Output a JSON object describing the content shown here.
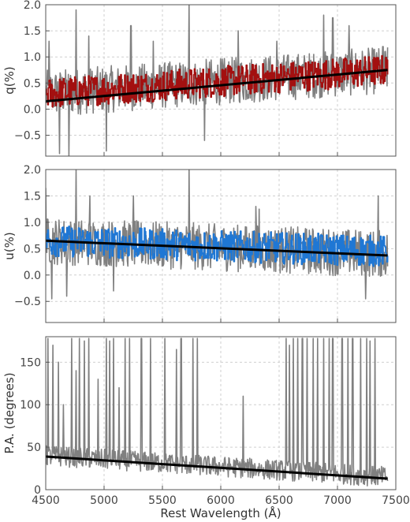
{
  "chart_data": [
    {
      "type": "line",
      "ylabel": "q(%)",
      "xlim": [
        4500,
        7500
      ],
      "ylim": [
        -0.9,
        2.0
      ],
      "yticks": [
        -0.5,
        0.0,
        0.5,
        1.0,
        1.5,
        2.0
      ],
      "ytick_labels": [
        "−0.5",
        "0.0",
        "0.5",
        "1.0",
        "1.5",
        "2.0"
      ],
      "grid": true,
      "series": [
        {
          "role": "raw",
          "color": "#808080",
          "x_range": [
            4500,
            7430
          ],
          "mean_start": 0.3,
          "mean_end": 0.75,
          "amplitude": 0.45,
          "spikes": [
            [
              4530,
              1.3
            ],
            [
              4760,
              1.9
            ],
            [
              4870,
              1.4
            ],
            [
              5230,
              1.6
            ],
            [
              5420,
              1.3
            ],
            [
              5730,
              2.0
            ],
            [
              5860,
              -0.6
            ],
            [
              6150,
              1.5
            ],
            [
              6480,
              1.3
            ],
            [
              6880,
              1.8
            ],
            [
              6960,
              1.75
            ],
            [
              7100,
              1.6
            ],
            [
              7390,
              1.2
            ],
            [
              4620,
              -0.85
            ],
            [
              4700,
              -0.9
            ],
            [
              5020,
              -0.8
            ]
          ]
        },
        {
          "role": "binned",
          "color": "#a31010",
          "x_range": [
            4500,
            7430
          ],
          "mean_start": 0.3,
          "mean_end": 0.75,
          "amplitude": 0.3
        },
        {
          "role": "fit",
          "color": "#000000",
          "x": [
            4500,
            7430
          ],
          "y": [
            0.15,
            0.75
          ]
        }
      ]
    },
    {
      "type": "line",
      "ylabel": "u(%)",
      "xlim": [
        4500,
        7500
      ],
      "ylim": [
        -0.9,
        2.0
      ],
      "yticks": [
        -0.5,
        0.0,
        0.5,
        1.0,
        1.5,
        2.0
      ],
      "ytick_labels": [
        "−0.5",
        "0.0",
        "0.5",
        "1.0",
        "1.5",
        "2.0"
      ],
      "grid": true,
      "series": [
        {
          "role": "raw",
          "color": "#808080",
          "x_range": [
            4500,
            7430
          ],
          "mean_start": 0.65,
          "mean_end": 0.4,
          "amplitude": 0.45,
          "spikes": [
            [
              4500,
              1.65
            ],
            [
              4760,
              2.0
            ],
            [
              4880,
              1.5
            ],
            [
              5250,
              1.5
            ],
            [
              5730,
              2.0
            ],
            [
              6300,
              1.3
            ],
            [
              6330,
              1.25
            ],
            [
              7350,
              1.5
            ],
            [
              4550,
              -0.45
            ],
            [
              4680,
              -0.4
            ],
            [
              5080,
              -0.3
            ],
            [
              7240,
              -0.45
            ]
          ]
        },
        {
          "role": "binned",
          "color": "#1f77d4",
          "x_range": [
            4500,
            7430
          ],
          "mean_start": 0.65,
          "mean_end": 0.45,
          "amplitude": 0.3
        },
        {
          "role": "fit",
          "color": "#000000",
          "x": [
            4500,
            7430
          ],
          "y": [
            0.65,
            0.37
          ]
        }
      ]
    },
    {
      "type": "line",
      "ylabel": "P.A. (degrees)",
      "xlabel": "Rest Wavelength (Å)",
      "xlim": [
        4500,
        7500
      ],
      "ylim": [
        0,
        180
      ],
      "xticks": [
        4500,
        5000,
        5500,
        6000,
        6500,
        7000,
        7500
      ],
      "xtick_labels": [
        "4500",
        "5000",
        "5500",
        "6000",
        "6500",
        "7000",
        "7500"
      ],
      "yticks": [
        0,
        50,
        100,
        150
      ],
      "ytick_labels": [
        "0",
        "50",
        "100",
        "150"
      ],
      "grid": true,
      "series": [
        {
          "role": "raw",
          "color": "#808080",
          "x_range": [
            4500,
            7430
          ],
          "mean_start": 40,
          "mean_end": 15,
          "amplitude": 12,
          "spikes": [
            [
              4520,
              178
            ],
            [
              4560,
              170
            ],
            [
              4610,
              150
            ],
            [
              4650,
              100
            ],
            [
              4720,
              178
            ],
            [
              4760,
              140
            ],
            [
              4790,
              178
            ],
            [
              4830,
              175
            ],
            [
              4870,
              178
            ],
            [
              4950,
              130
            ],
            [
              5020,
              178
            ],
            [
              5050,
              175
            ],
            [
              5080,
              178
            ],
            [
              5130,
              120
            ],
            [
              5180,
              178
            ],
            [
              5220,
              178
            ],
            [
              5320,
              178
            ],
            [
              5400,
              178
            ],
            [
              5520,
              178
            ],
            [
              5620,
              165
            ],
            [
              5660,
              178
            ],
            [
              5760,
              178
            ],
            [
              5800,
              178
            ],
            [
              6190,
              110
            ],
            [
              6560,
              178
            ],
            [
              6590,
              170
            ],
            [
              6620,
              178
            ],
            [
              6660,
              178
            ],
            [
              6700,
              178
            ],
            [
              6740,
              178
            ],
            [
              6790,
              178
            ],
            [
              6830,
              178
            ],
            [
              6880,
              178
            ],
            [
              6930,
              178
            ],
            [
              6960,
              178
            ],
            [
              7040,
              178
            ],
            [
              7090,
              178
            ],
            [
              7130,
              178
            ],
            [
              7200,
              178
            ],
            [
              7250,
              178
            ],
            [
              7280,
              175
            ],
            [
              7320,
              178
            ]
          ]
        },
        {
          "role": "fit",
          "color": "#000000",
          "x": [
            4500,
            7430
          ],
          "y": [
            39,
            13
          ]
        }
      ]
    }
  ]
}
